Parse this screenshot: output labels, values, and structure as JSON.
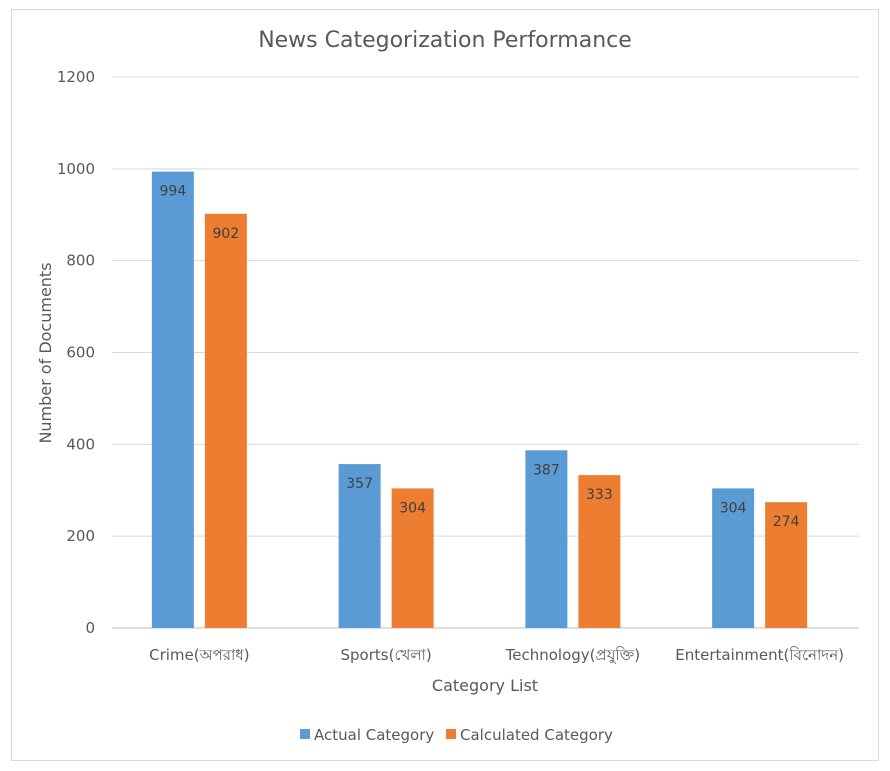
{
  "chart_data": {
    "type": "bar",
    "title": "News Categorization Performance",
    "xlabel": "Category List",
    "ylabel": "Number of Documents",
    "ylim": [
      0,
      1200
    ],
    "yticks": [
      0,
      200,
      400,
      600,
      800,
      1000,
      1200
    ],
    "grid": true,
    "legend_position": "bottom",
    "categories": [
      "Crime(অপরাধ)",
      "Sports(খেলা)",
      "Technology(প্রযুক্তি)",
      "Entertainment(বিনোদন)"
    ],
    "series": [
      {
        "name": "Actual Category",
        "color": "#5b9bd5",
        "values": [
          994,
          357,
          387,
          304
        ]
      },
      {
        "name": "Calculated Category",
        "color": "#ed7d31",
        "values": [
          902,
          304,
          333,
          274
        ]
      }
    ]
  }
}
